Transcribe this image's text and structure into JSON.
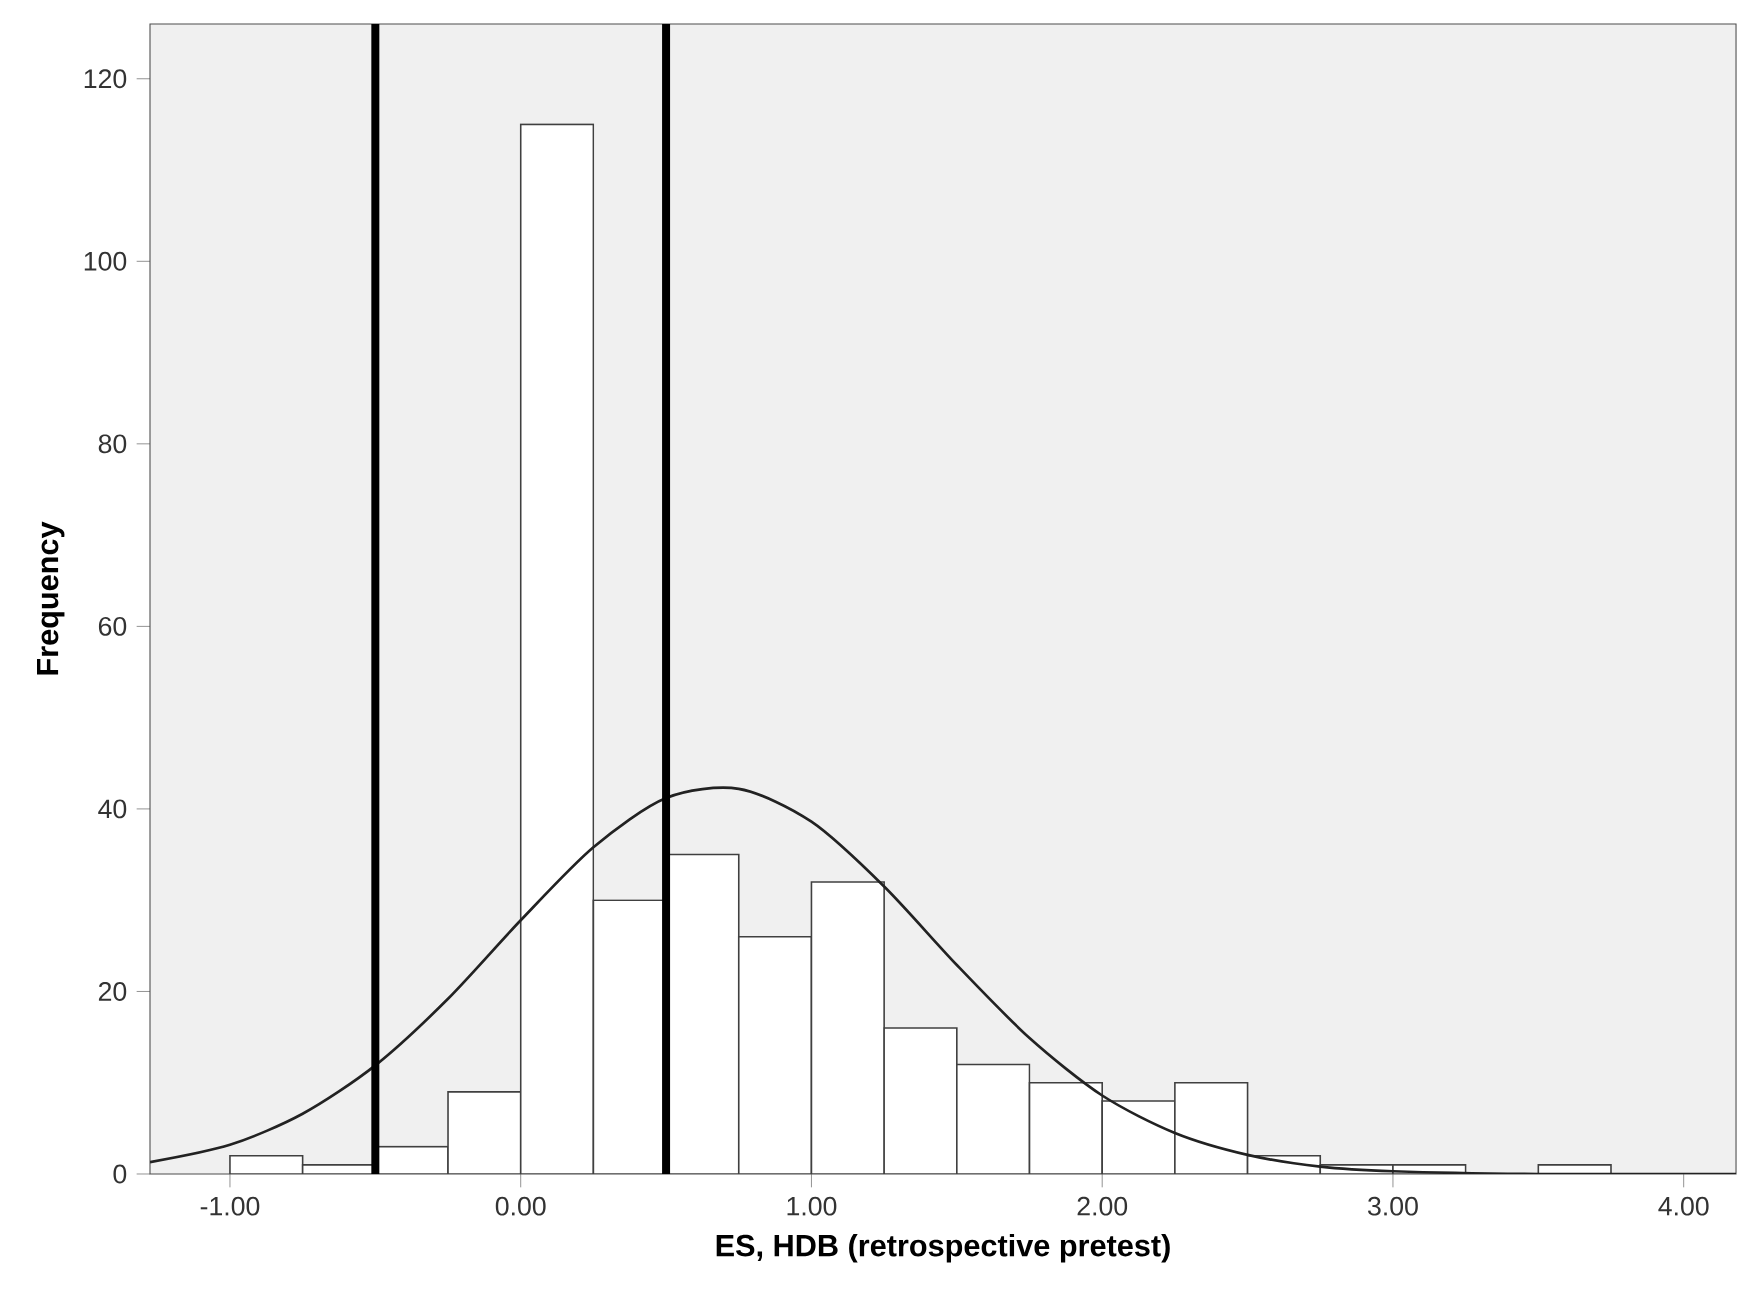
{
  "chart_data": {
    "type": "histogram",
    "xlabel": "ES, HDB (retrospective pretest)",
    "ylabel": "Frequency",
    "xlim": [
      -1.275,
      4.18
    ],
    "ylim": [
      0,
      126
    ],
    "xticks": [
      {
        "value": -1,
        "label": "-1.00"
      },
      {
        "value": 0,
        "label": "0.00"
      },
      {
        "value": 1,
        "label": "1.00"
      },
      {
        "value": 2,
        "label": "2.00"
      },
      {
        "value": 3,
        "label": "3.00"
      },
      {
        "value": 4,
        "label": "4.00"
      }
    ],
    "yticks": [
      0,
      20,
      40,
      60,
      80,
      100,
      120
    ],
    "series": [
      {
        "color": "#ffffff",
        "bins": [
          -1.0,
          -0.75,
          -0.5,
          -0.25,
          0.0,
          0.25,
          0.5,
          0.75,
          1.0,
          1.25,
          1.5,
          1.75,
          2.0,
          2.25,
          2.5,
          2.75,
          3.0,
          3.25,
          3.5,
          3.75
        ],
        "values": [
          2,
          1,
          3,
          9,
          115,
          30,
          35,
          26,
          32,
          16,
          12,
          10,
          8,
          10,
          2,
          1,
          1,
          0,
          1
        ]
      },
      {
        "type": "line",
        "color": "#222222",
        "x": [
          -1.275,
          -1.0,
          -0.75,
          -0.5,
          -0.25,
          0.0,
          0.25,
          0.5,
          0.75,
          1.0,
          1.25,
          1.5,
          1.75,
          2.0,
          2.25,
          2.5,
          2.75,
          3.0,
          3.5,
          4.18
        ],
        "values": [
          1.3,
          3.2,
          6.6,
          11.9,
          19.2,
          27.8,
          35.8,
          41.2,
          42.2,
          38.6,
          31.5,
          22.9,
          14.9,
          8.6,
          4.5,
          2.1,
          0.8,
          0.3,
          0.0,
          0.0
        ]
      }
    ],
    "ref_lines": [
      {
        "axis": "x",
        "value": -0.5,
        "color": "#000000"
      },
      {
        "axis": "x",
        "value": 0.5,
        "color": "#000000"
      }
    ]
  }
}
